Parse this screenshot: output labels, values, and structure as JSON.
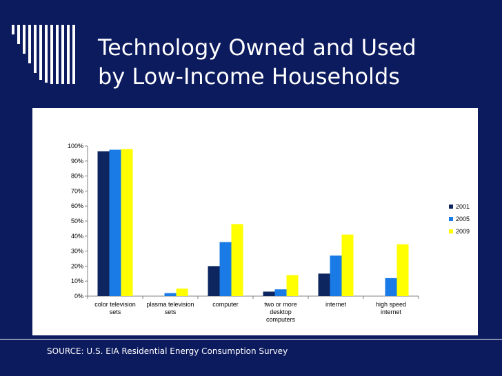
{
  "slide": {
    "title_line1": "Technology Owned and Used",
    "title_line2": "by Low-Income Households",
    "source": "SOURCE: U.S. EIA Residential Energy Consumption Survey",
    "background_color": "#0c1a5e",
    "decoration_icon": "vertical-stripes-icon"
  },
  "chart_data": {
    "type": "bar",
    "title": "",
    "xlabel": "",
    "ylabel": "",
    "ylim": [
      0,
      100
    ],
    "y_ticks": [
      "0%",
      "10%",
      "20%",
      "30%",
      "40%",
      "50%",
      "60%",
      "70%",
      "80%",
      "90%",
      "100%"
    ],
    "categories": [
      [
        "color television",
        "sets"
      ],
      [
        "plasma television",
        "sets"
      ],
      [
        "computer"
      ],
      [
        "two or more",
        "desktop",
        "computers"
      ],
      [
        "internet"
      ],
      [
        "high speed",
        "internet"
      ]
    ],
    "series": [
      {
        "name": "2001",
        "color": "#0d2660",
        "values": [
          96.5,
          0,
          20,
          3,
          15,
          0
        ]
      },
      {
        "name": "2005",
        "color": "#1a7be6",
        "values": [
          97.5,
          2,
          36,
          4.5,
          27,
          12
        ]
      },
      {
        "name": "2009",
        "color": "#ffff00",
        "values": [
          98,
          5,
          48,
          14,
          41,
          34.5
        ]
      }
    ],
    "legend_position": "right",
    "grid": false
  }
}
